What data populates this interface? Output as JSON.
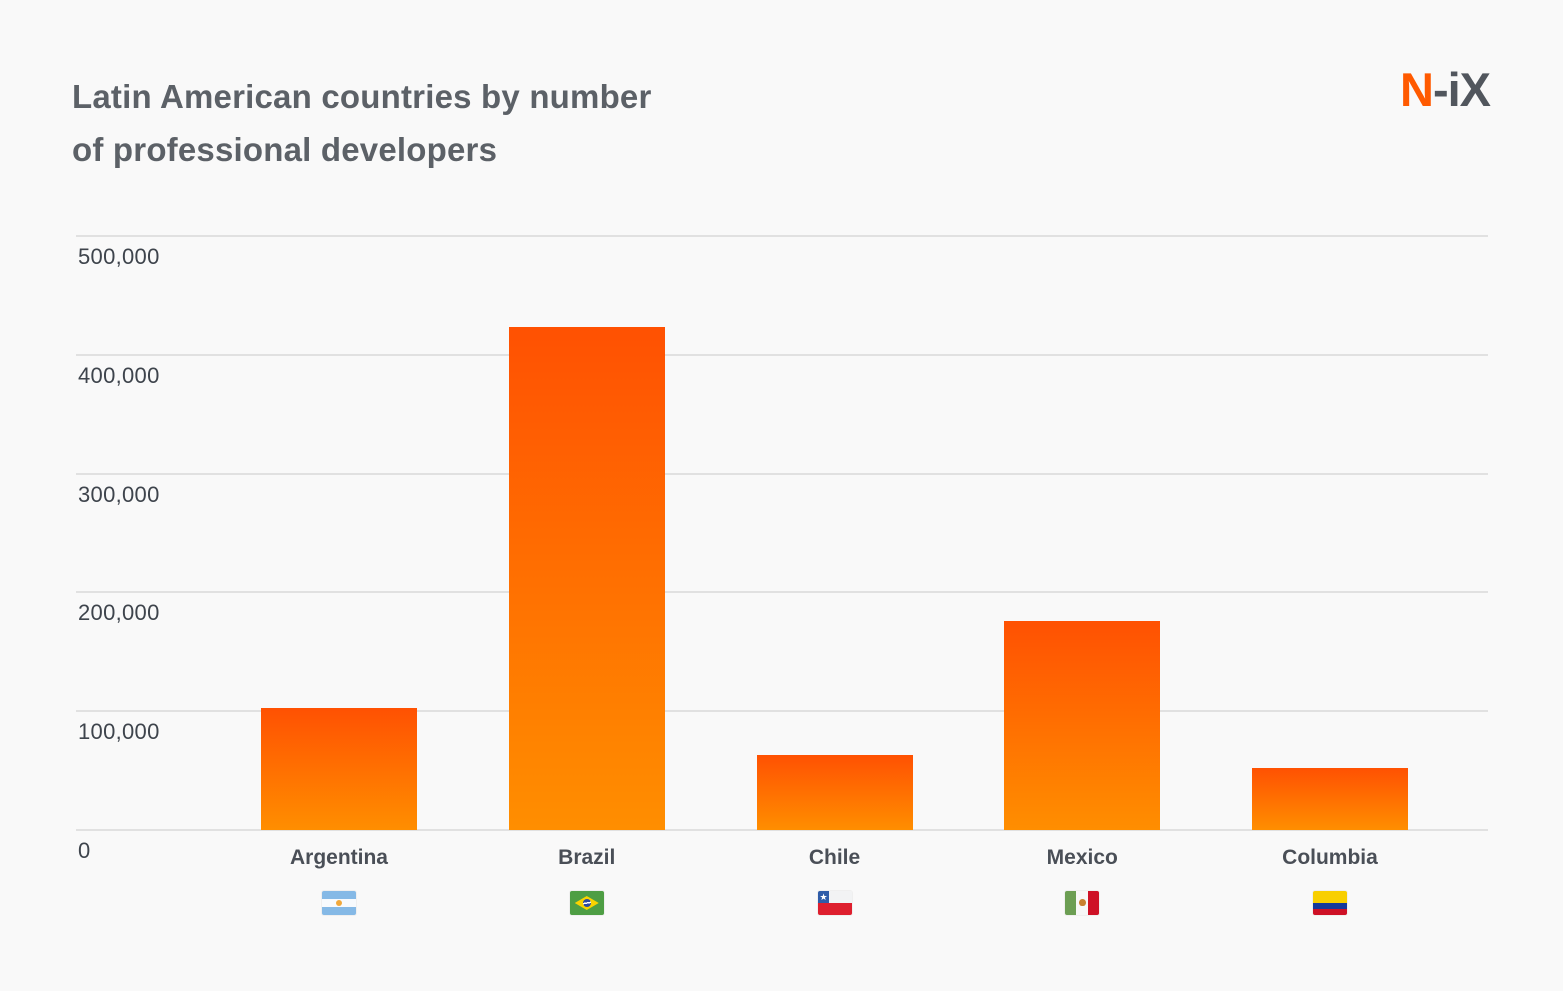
{
  "header": {
    "title_line1": "Latin American countries by number",
    "title_line2": "of professional developers",
    "logo": {
      "accent": "N",
      "rest": "-iX",
      "accent_color": "#FF5A00",
      "rest_color": "#51565D"
    }
  },
  "chart_data": {
    "type": "bar",
    "title": "Latin American countries by number of professional developers",
    "categories": [
      "Argentina",
      "Brazil",
      "Chile",
      "Mexico",
      "Columbia"
    ],
    "values": [
      103000,
      423000,
      63000,
      176000,
      52000
    ],
    "flags": [
      "argentina",
      "brazil",
      "chile",
      "mexico",
      "columbia"
    ],
    "xlabel": "",
    "ylabel": "",
    "ylim": [
      0,
      500000
    ],
    "ytick_labels": [
      "500,000",
      "400,000",
      "300,000",
      "200,000",
      "100,000",
      "0"
    ],
    "grid": true,
    "legend": false,
    "bar_gradient_top": "#FF5102",
    "bar_gradient_bottom": "#FF8E00",
    "gridline_color": "#E1E1E1",
    "background_color": "#F9F9F9",
    "tick_label_color": "#3E444C",
    "category_label_color": "#4A4F57",
    "title_color": "#5C6167"
  }
}
